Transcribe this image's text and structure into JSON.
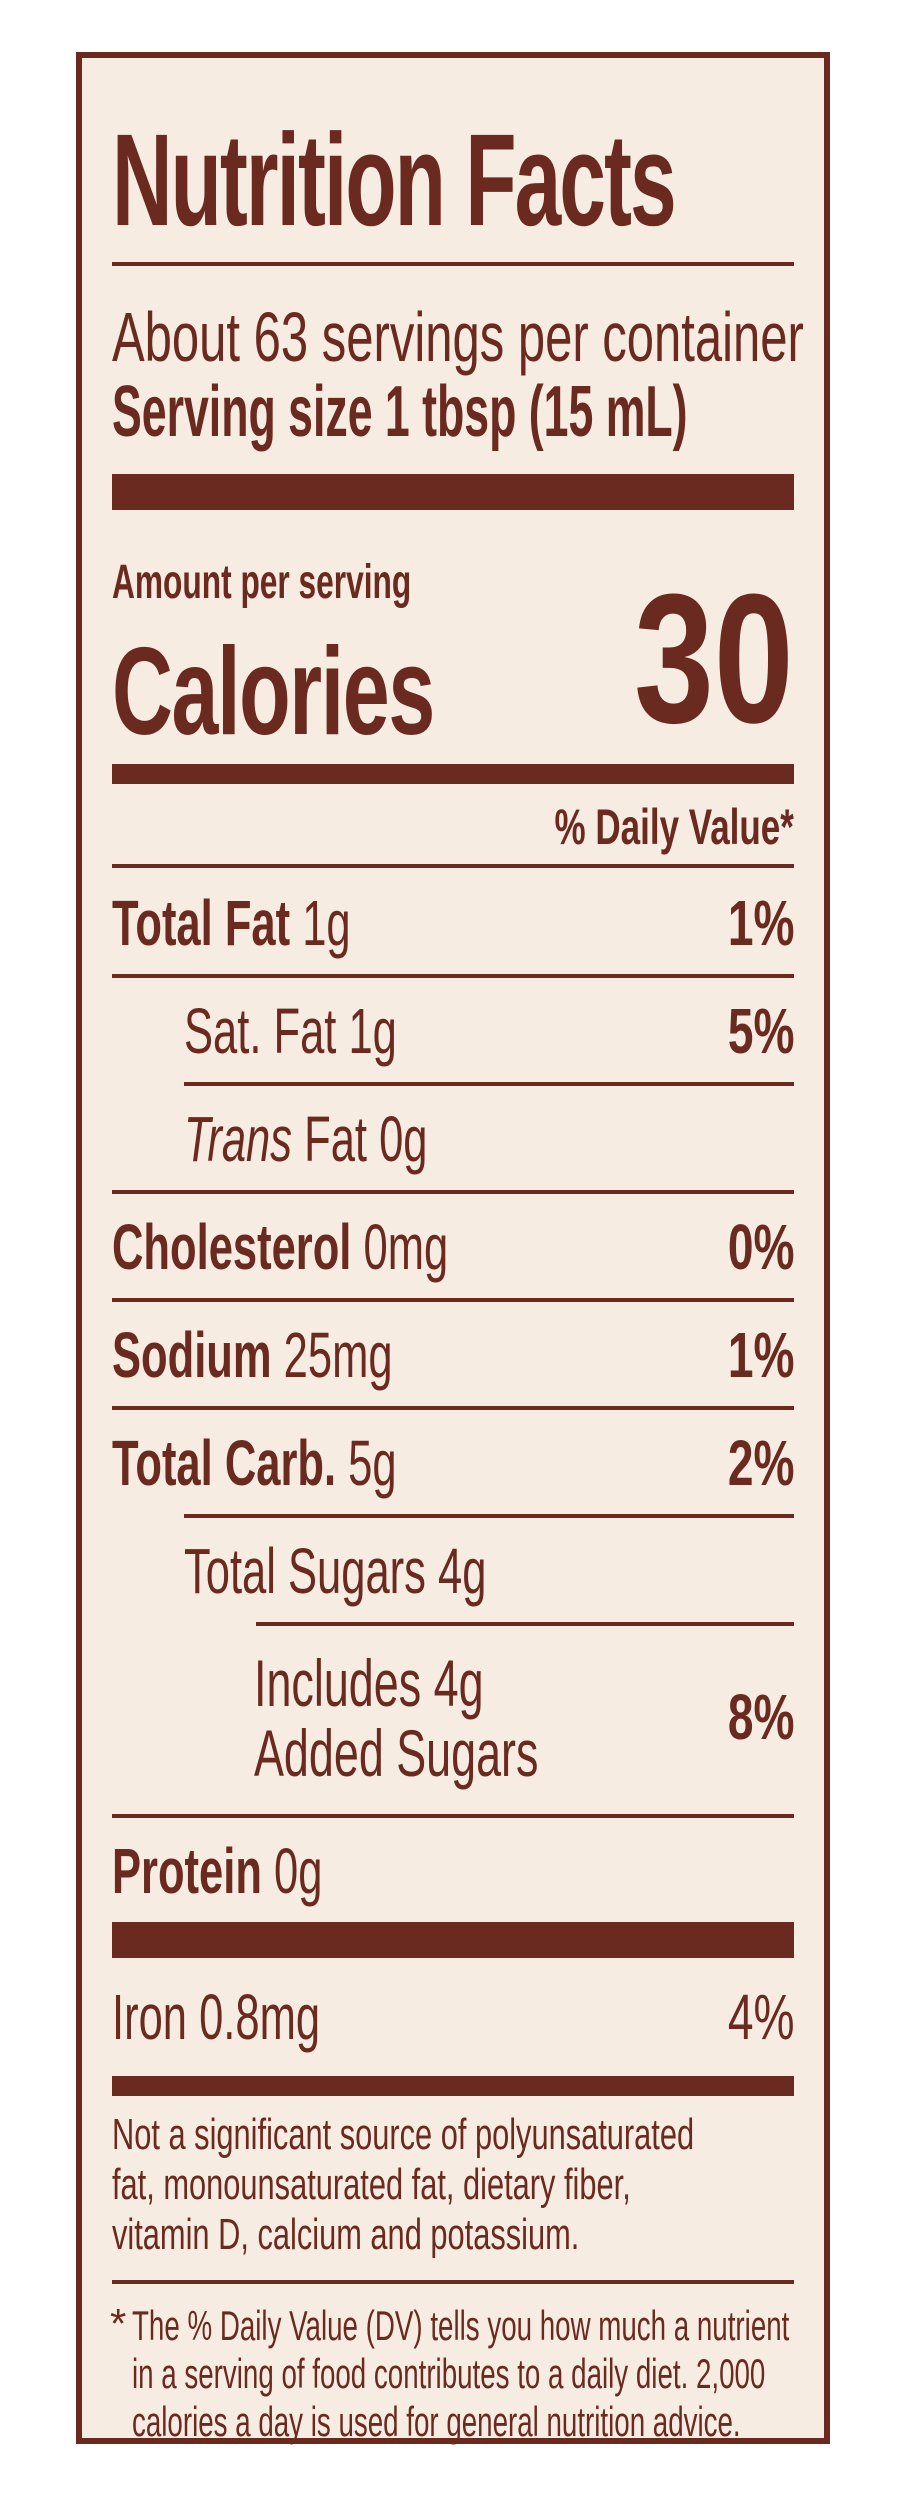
{
  "panel": {
    "title": "Nutrition Facts",
    "servings_per_container": "About 63 servings per container",
    "serving_size": "Serving size 1 tbsp (15 mL)",
    "amount_per_serving": "Amount per serving",
    "calories_label": "Calories",
    "calories_value": "30",
    "daily_value_header": "% Daily Value*"
  },
  "nutrients": [
    {
      "name": "Total Fat",
      "amount": "1g",
      "dv": "1%"
    },
    {
      "name": "Sat. Fat",
      "amount": "1g",
      "dv": "5%"
    },
    {
      "name": "Trans",
      "name_suffix": "Fat",
      "amount": "0g"
    },
    {
      "name": "Cholesterol",
      "amount": "0mg",
      "dv": "0%"
    },
    {
      "name": "Sodium",
      "amount": "25mg",
      "dv": "1%"
    },
    {
      "name": "Total Carb.",
      "amount": "5g",
      "dv": "2%"
    },
    {
      "name": "Total Sugars",
      "amount": "4g"
    },
    {
      "line1": "Includes 4g",
      "line2": "Added Sugars",
      "dv": "8%"
    },
    {
      "name": "Protein",
      "amount": "0g"
    }
  ],
  "vitamins": [
    {
      "name": "Iron",
      "amount": "0.8mg",
      "dv": "4%"
    }
  ],
  "footnotes": {
    "not_significant": [
      "Not a significant source of polyunsaturated",
      "fat, monounsaturated fat, dietary fiber,",
      "vitamin D, calcium and potassium."
    ],
    "asterisk": "*",
    "dv_explanation": [
      "The % Daily Value (DV) tells you how much a nutrient",
      "in a serving of food contributes to a daily diet. 2,000",
      "calories a day is used for general nutrition advice."
    ]
  },
  "colors": {
    "ink": "#6b2a1f",
    "background": "#f6ece2"
  }
}
